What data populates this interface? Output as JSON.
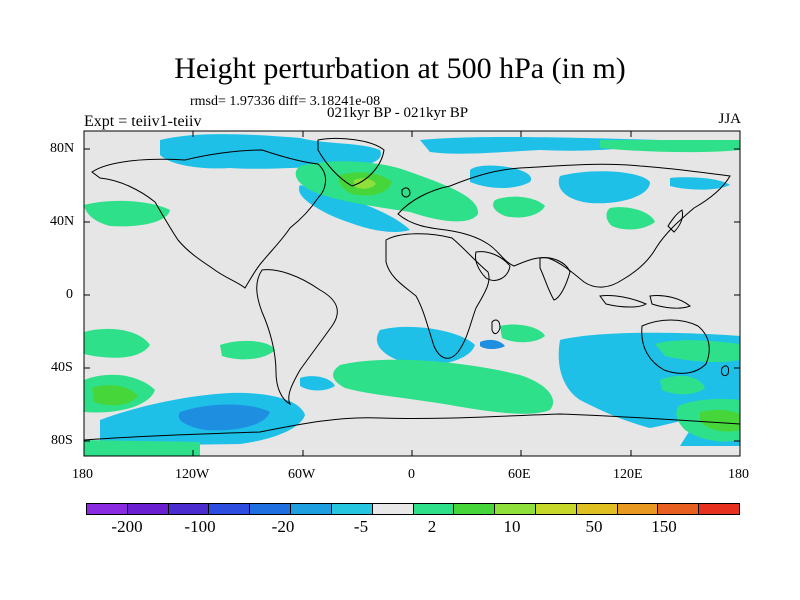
{
  "figure": {
    "title": "Height perturbation at 500 hPa (in m)",
    "stats": "rmsd= 1.97336 diff= 3.18241e-08",
    "periods": "021kyr BP - 021kyr BP",
    "experiment": "Expt = teiiv1-teiiv",
    "season": "JJA"
  },
  "axes": {
    "lat_labels": [
      "80N",
      "40N",
      "0",
      "40S",
      "80S"
    ],
    "lon_labels": [
      "180",
      "120W",
      "60W",
      "0",
      "60E",
      "120E",
      "180"
    ]
  },
  "colorbar": {
    "colors": [
      "#8a2be2",
      "#6a1fd0",
      "#4b2ccf",
      "#2d4de0",
      "#1f6fe0",
      "#1e9fe0",
      "#26c6e0",
      "#e8e8e8",
      "#2fe08a",
      "#46d63a",
      "#8fe03a",
      "#c8d82a",
      "#e0c020",
      "#e89a20",
      "#e86020",
      "#e8301e"
    ],
    "labels": [
      "-200",
      "-100",
      "-20",
      "-5",
      "2",
      "10",
      "50",
      "150"
    ]
  },
  "palette": {
    "background": "#e6e6e6",
    "cyan": "#1ec0e8",
    "light_cyan": "#34cce8",
    "blue": "#1e8fe0",
    "green": "#2fe08a",
    "bright_green": "#46d63a",
    "yellow_green": "#8fe03a",
    "coast": "#000000"
  }
}
